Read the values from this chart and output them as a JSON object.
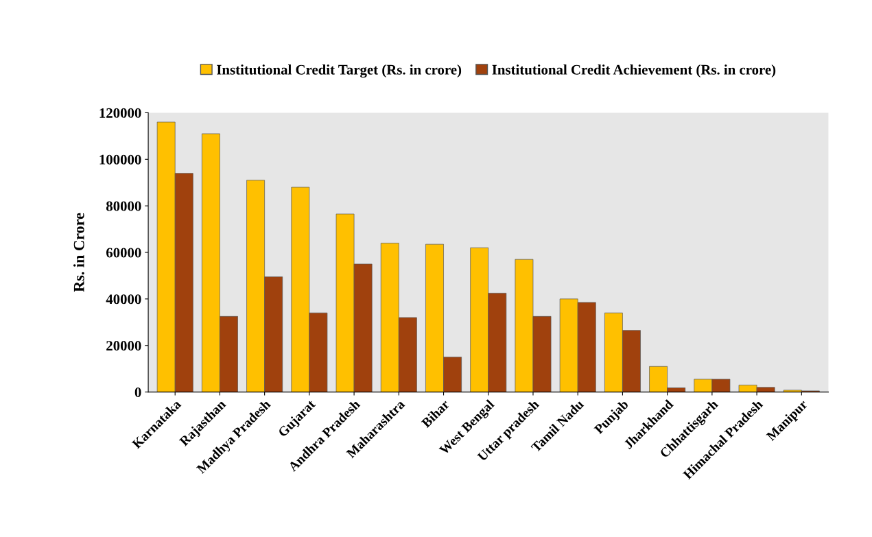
{
  "chart_data": {
    "type": "bar",
    "ylabel": "Rs. in Crore",
    "categories": [
      "Karnataka",
      "Rajasthan",
      "Madhya Pradesh",
      "Gujarat",
      "Andhra Pradesh",
      "Maharashtra",
      "Bihar",
      "West Bengal",
      "Uttar pradesh",
      "Tamil Nadu",
      "Punjab",
      "Jharkhand",
      "Chhattisgarh",
      "Himachal Pradesh",
      "Manipur"
    ],
    "series": [
      {
        "name": "Institutional Credit Target (Rs. in crore)",
        "color": "#ffc000",
        "values": [
          116000,
          111000,
          91000,
          88000,
          76500,
          64000,
          63500,
          62000,
          57000,
          40000,
          34000,
          11000,
          5500,
          3000,
          800
        ]
      },
      {
        "name": "Institutional Credit Achievement (Rs. in crore)",
        "color": "#a0410d",
        "values": [
          94000,
          32500,
          49500,
          34000,
          55000,
          32000,
          15000,
          42500,
          32500,
          38500,
          26500,
          1800,
          5500,
          2000,
          500
        ]
      }
    ],
    "ylim": [
      0,
      120000
    ],
    "yticks": [
      0,
      20000,
      40000,
      60000,
      80000,
      100000,
      120000
    ],
    "grid": false,
    "legend": "top"
  }
}
